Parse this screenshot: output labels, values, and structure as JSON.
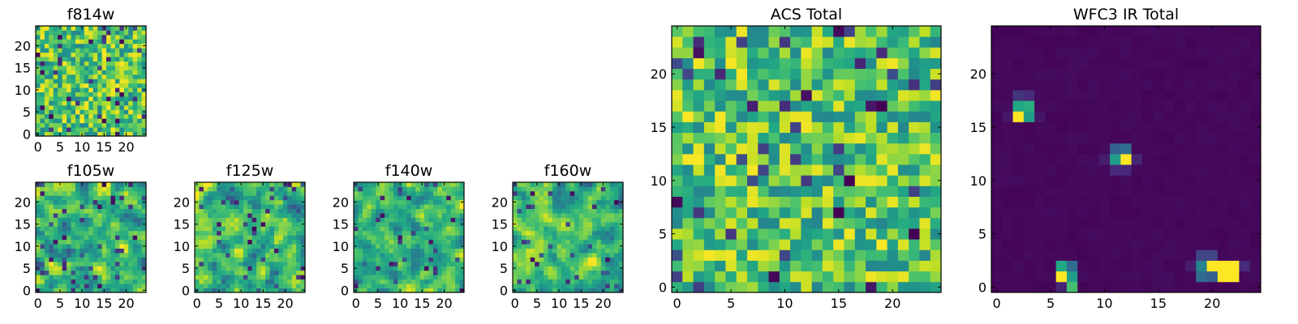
{
  "chart_data": [
    {
      "type": "heatmap",
      "title": "f814w",
      "grid_size": 25,
      "colormap": "viridis",
      "xlim": [
        0,
        25
      ],
      "ylim": [
        0,
        25
      ],
      "xticks": [
        0,
        5,
        10,
        15,
        20
      ],
      "yticks": [
        0,
        5,
        10,
        15,
        20
      ],
      "pattern": "noise",
      "seed": 11
    },
    {
      "type": "heatmap",
      "title": "f105w",
      "grid_size": 25,
      "colormap": "viridis",
      "xlim": [
        0,
        25
      ],
      "ylim": [
        0,
        25
      ],
      "xticks": [
        0,
        5,
        10,
        15,
        20
      ],
      "yticks": [
        0,
        5,
        10,
        15,
        20
      ],
      "pattern": "smooth",
      "seed": 23
    },
    {
      "type": "heatmap",
      "title": "f125w",
      "grid_size": 25,
      "colormap": "viridis",
      "xlim": [
        0,
        25
      ],
      "ylim": [
        0,
        25
      ],
      "xticks": [
        0,
        5,
        10,
        15,
        20
      ],
      "yticks": [
        0,
        5,
        10,
        15,
        20
      ],
      "pattern": "smooth",
      "seed": 37
    },
    {
      "type": "heatmap",
      "title": "f140w",
      "grid_size": 25,
      "colormap": "viridis",
      "xlim": [
        0,
        25
      ],
      "ylim": [
        0,
        25
      ],
      "xticks": [
        0,
        5,
        10,
        15,
        20
      ],
      "yticks": [
        0,
        5,
        10,
        15,
        20
      ],
      "pattern": "smooth",
      "seed": 41
    },
    {
      "type": "heatmap",
      "title": "f160w",
      "grid_size": 25,
      "colormap": "viridis",
      "xlim": [
        0,
        25
      ],
      "ylim": [
        0,
        25
      ],
      "xticks": [
        0,
        5,
        10,
        15,
        20
      ],
      "yticks": [
        0,
        5,
        10,
        15,
        20
      ],
      "pattern": "smooth",
      "seed": 53
    },
    {
      "type": "heatmap",
      "title": "ACS Total",
      "grid_size": 25,
      "colormap": "viridis",
      "xlim": [
        0,
        25
      ],
      "ylim": [
        0,
        25
      ],
      "xticks": [
        0,
        5,
        10,
        15,
        20
      ],
      "yticks": [
        0,
        5,
        10,
        15,
        20
      ],
      "pattern": "noise",
      "seed": 67
    },
    {
      "type": "heatmap",
      "title": "WFC3 IR Total",
      "grid_size": 25,
      "colormap": "viridis",
      "xlim": [
        0,
        25
      ],
      "ylim": [
        0,
        25
      ],
      "xticks": [
        0,
        5,
        10,
        15,
        20
      ],
      "yticks": [
        0,
        5,
        10,
        15,
        20
      ],
      "pattern": "sparse",
      "background_value": 0.02,
      "cells": [
        {
          "x": 2,
          "y": 16,
          "v": 1.0
        },
        {
          "x": 3,
          "y": 16,
          "v": 0.55
        },
        {
          "x": 2,
          "y": 17,
          "v": 0.6
        },
        {
          "x": 3,
          "y": 17,
          "v": 0.62
        },
        {
          "x": 2,
          "y": 18,
          "v": 0.15
        },
        {
          "x": 3,
          "y": 18,
          "v": 0.12
        },
        {
          "x": 1,
          "y": 16,
          "v": 0.06
        },
        {
          "x": 4,
          "y": 16,
          "v": 0.06
        },
        {
          "x": 11,
          "y": 12,
          "v": 0.55
        },
        {
          "x": 12,
          "y": 12,
          "v": 1.0
        },
        {
          "x": 11,
          "y": 13,
          "v": 0.3
        },
        {
          "x": 12,
          "y": 13,
          "v": 0.35
        },
        {
          "x": 11,
          "y": 11,
          "v": 0.12
        },
        {
          "x": 12,
          "y": 11,
          "v": 0.12
        },
        {
          "x": 13,
          "y": 12,
          "v": 0.1
        },
        {
          "x": 10,
          "y": 12,
          "v": 0.08
        },
        {
          "x": 6,
          "y": 1,
          "v": 1.0
        },
        {
          "x": 7,
          "y": 1,
          "v": 0.55
        },
        {
          "x": 6,
          "y": 2,
          "v": 0.6
        },
        {
          "x": 7,
          "y": 2,
          "v": 0.35
        },
        {
          "x": 7,
          "y": 0,
          "v": 0.7
        },
        {
          "x": 6,
          "y": 0,
          "v": 0.1
        },
        {
          "x": 19,
          "y": 1,
          "v": 0.35
        },
        {
          "x": 20,
          "y": 1,
          "v": 0.3
        },
        {
          "x": 19,
          "y": 2,
          "v": 0.45
        },
        {
          "x": 20,
          "y": 2,
          "v": 1.0
        },
        {
          "x": 21,
          "y": 2,
          "v": 1.0
        },
        {
          "x": 22,
          "y": 2,
          "v": 1.0
        },
        {
          "x": 21,
          "y": 1,
          "v": 1.0
        },
        {
          "x": 22,
          "y": 1,
          "v": 1.0
        },
        {
          "x": 19,
          "y": 3,
          "v": 0.2
        },
        {
          "x": 20,
          "y": 3,
          "v": 0.2
        },
        {
          "x": 23,
          "y": 2,
          "v": 0.12
        },
        {
          "x": 18,
          "y": 2,
          "v": 0.08
        }
      ]
    }
  ]
}
